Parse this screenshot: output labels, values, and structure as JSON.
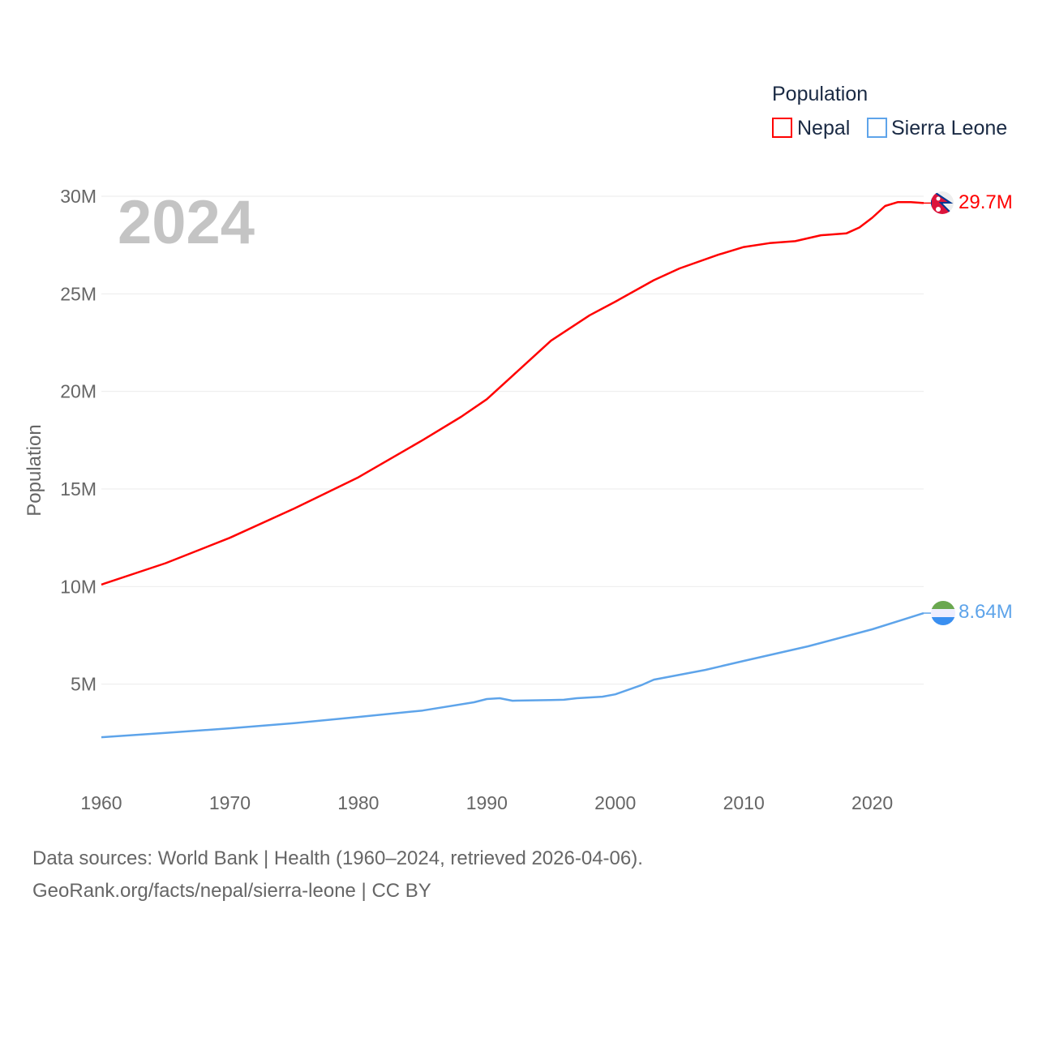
{
  "chart_data": {
    "type": "line",
    "title": "Population",
    "year_label": "2024",
    "xlabel": "",
    "ylabel": "Population",
    "xlim": [
      1960,
      2024
    ],
    "ylim": [
      0,
      30000000
    ],
    "x_ticks": [
      "1960",
      "1970",
      "1980",
      "1990",
      "2000",
      "2010",
      "2020"
    ],
    "y_ticks": [
      {
        "v": 5000000,
        "label": "5M"
      },
      {
        "v": 10000000,
        "label": "10M"
      },
      {
        "v": 15000000,
        "label": "15M"
      },
      {
        "v": 20000000,
        "label": "20M"
      },
      {
        "v": 25000000,
        "label": "25M"
      },
      {
        "v": 30000000,
        "label": "30M"
      }
    ],
    "grid": true,
    "legend_position": "top-right",
    "series": [
      {
        "name": "Nepal",
        "color": "#ff0000",
        "end_label": "29.7M",
        "flag": "nepal-flag",
        "points": [
          [
            1960,
            10.1
          ],
          [
            1965,
            11.2
          ],
          [
            1970,
            12.5
          ],
          [
            1975,
            14.0
          ],
          [
            1980,
            15.6
          ],
          [
            1985,
            17.5
          ],
          [
            1988,
            18.7
          ],
          [
            1990,
            19.6
          ],
          [
            1992,
            20.8
          ],
          [
            1995,
            22.6
          ],
          [
            1998,
            23.9
          ],
          [
            2000,
            24.6
          ],
          [
            2003,
            25.7
          ],
          [
            2005,
            26.3
          ],
          [
            2008,
            27.0
          ],
          [
            2010,
            27.4
          ],
          [
            2012,
            27.6
          ],
          [
            2014,
            27.7
          ],
          [
            2016,
            28.0
          ],
          [
            2018,
            28.1
          ],
          [
            2019,
            28.4
          ],
          [
            2020,
            28.9
          ],
          [
            2021,
            29.5
          ],
          [
            2022,
            29.7
          ],
          [
            2023,
            29.7
          ],
          [
            2024,
            29.65
          ]
        ]
      },
      {
        "name": "Sierra Leone",
        "color": "#5ea4ea",
        "end_label": "8.64M",
        "flag": "sierra-leone-flag",
        "points": [
          [
            1960,
            2.28
          ],
          [
            1965,
            2.5
          ],
          [
            1970,
            2.74
          ],
          [
            1975,
            3.0
          ],
          [
            1980,
            3.32
          ],
          [
            1985,
            3.65
          ],
          [
            1989,
            4.07
          ],
          [
            1990,
            4.24
          ],
          [
            1991,
            4.28
          ],
          [
            1992,
            4.15
          ],
          [
            1995,
            4.19
          ],
          [
            1996,
            4.2
          ],
          [
            1997,
            4.28
          ],
          [
            1999,
            4.36
          ],
          [
            2000,
            4.48
          ],
          [
            2002,
            4.94
          ],
          [
            2003,
            5.23
          ],
          [
            2005,
            5.48
          ],
          [
            2007,
            5.73
          ],
          [
            2010,
            6.19
          ],
          [
            2015,
            6.94
          ],
          [
            2020,
            7.81
          ],
          [
            2024,
            8.64
          ]
        ]
      }
    ]
  },
  "footer": {
    "sources": "Data sources: World Bank | Health (1960–2024, retrieved 2026-04-06).",
    "credit": "GeoRank.org/facts/nepal/sierra-leone | CC BY"
  }
}
